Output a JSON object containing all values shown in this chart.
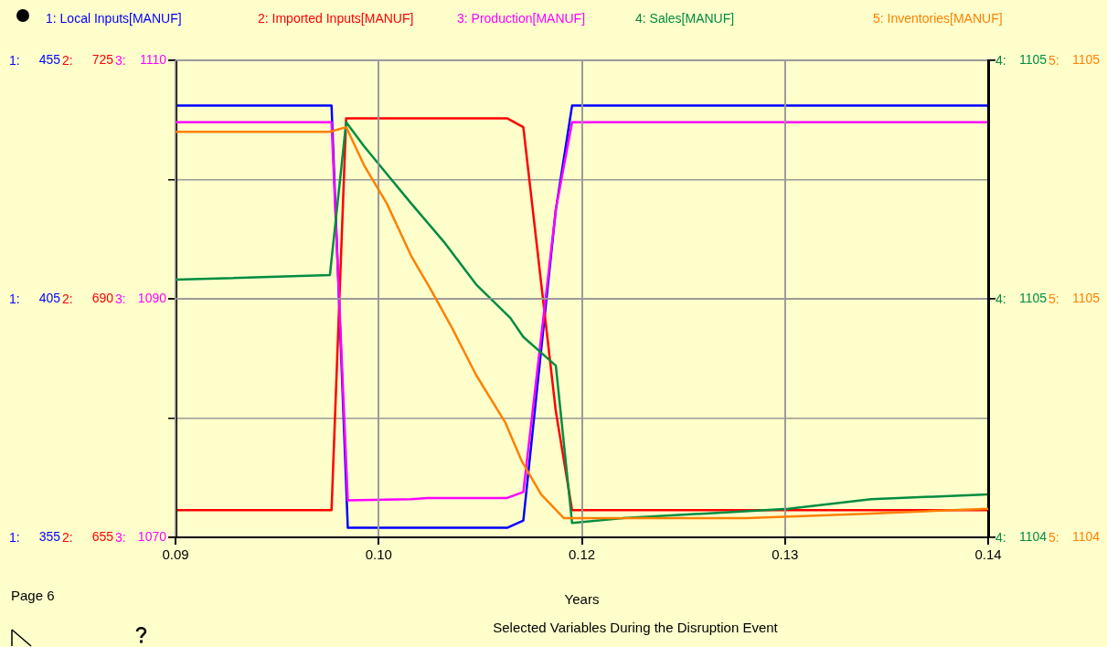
{
  "chart_data": [
    {
      "type": "line",
      "xlabel": "Years",
      "legend": "top",
      "grid": true,
      "line_style": "solid",
      "xlim": [
        0.09,
        0.14
      ],
      "xticks": [
        {
          "value": 0.09,
          "label": "0.09"
        },
        {
          "value": 0.1025,
          "label": "0.10"
        },
        {
          "value": 0.115,
          "label": "0.12"
        },
        {
          "value": 0.1275,
          "label": "0.13"
        },
        {
          "value": 0.14,
          "label": "0.14"
        }
      ],
      "ylim": [
        355,
        455
      ],
      "yticks": [
        355,
        {
          "value": 380,
          "label": null
        },
        405,
        {
          "value": 430,
          "label": null
        },
        455
      ],
      "annotations": [
        "Page 6",
        "Selected Variables During the Disruption Event",
        "1:",
        "1:",
        "1:"
      ],
      "series": [
        {
          "name": "1: Local Inputs[MANUF]",
          "color": "#0000ff",
          "x": [
            0.09,
            0.0996,
            0.1006,
            0.1104,
            0.1114,
            0.1134,
            0.1144,
            0.14
          ],
          "values": [
            445.5,
            445.5,
            357,
            357,
            358.5,
            423.7,
            445.5,
            445.5
          ]
        }
      ]
    },
    {
      "type": "line",
      "legend": "top",
      "grid": true,
      "line_style": "solid",
      "tick_labels": "y",
      "xlim": [
        0.09,
        0.14
      ],
      "xticks": [
        0.09,
        0.1025,
        0.115,
        0.1275,
        0.14
      ],
      "ylim": [
        655,
        725
      ],
      "yticks": [
        655,
        690,
        725
      ],
      "annotations": [
        "2:",
        "2:",
        "2:"
      ],
      "series": [
        {
          "name": "2: Imported Inputs[MANUF]",
          "color": "#ff0000",
          "x": [
            0.09,
            0.0996,
            0.1005,
            0.1104,
            0.1114,
            0.1134,
            0.1144,
            0.14
          ],
          "values": [
            659,
            659,
            716.5,
            716.5,
            715.2,
            673.5,
            659,
            659
          ]
        }
      ]
    },
    {
      "type": "line",
      "legend": "top",
      "grid": true,
      "line_style": "solid",
      "tick_labels": "y",
      "xlim": [
        0.09,
        0.14
      ],
      "xticks": [
        0.09,
        0.1025,
        0.115,
        0.1275,
        0.14
      ],
      "ylim": [
        1070,
        1110
      ],
      "yticks": [
        1070,
        1090,
        1110
      ],
      "annotations": [
        "3:",
        "3:",
        "3:"
      ],
      "series": [
        {
          "name": "3: Production[MANUF]",
          "color": "#ff00ff",
          "x": [
            0.09,
            0.0996,
            0.1006,
            0.1045,
            0.1055,
            0.1104,
            0.1114,
            0.1134,
            0.1144,
            0.14
          ],
          "values": [
            1104.8,
            1104.8,
            1073.1,
            1073.2,
            1073.3,
            1073.3,
            1073.8,
            1097.5,
            1104.8,
            1104.8
          ]
        }
      ]
    },
    {
      "type": "line",
      "legend": "top",
      "grid": true,
      "line_style": "solid",
      "tick_labels": "y",
      "xlim": [
        0.09,
        0.14
      ],
      "xticks": [
        0.09,
        0.1025,
        0.115,
        0.1275,
        0.14
      ],
      "ylim": [
        1104.2,
        1105.2
      ],
      "yticks": [
        {
          "value": 1104.2,
          "label": "1104"
        },
        {
          "value": 1104.7,
          "label": "1105"
        },
        {
          "value": 1105.2,
          "label": "1105"
        }
      ],
      "annotations": [
        "4:",
        "4:",
        "4:"
      ],
      "series": [
        {
          "name": "4: Sales[MANUF]",
          "color": "#008c40",
          "x": [
            0.09,
            0.0995,
            0.1005,
            0.1016,
            0.1028,
            0.1045,
            0.1065,
            0.1085,
            0.1106,
            0.1114,
            0.1124,
            0.1134,
            0.1144,
            0.1175,
            0.1226,
            0.1277,
            0.1328,
            0.14
          ],
          "values": [
            1104.74,
            1104.75,
            1105.07,
            1105.02,
            1104.97,
            1104.9,
            1104.82,
            1104.73,
            1104.66,
            1104.62,
            1104.59,
            1104.56,
            1104.23,
            1104.24,
            1104.25,
            1104.26,
            1104.28,
            1104.29
          ]
        }
      ]
    },
    {
      "type": "line",
      "legend": "top",
      "grid": true,
      "line_style": "solid",
      "tick_labels": "y",
      "xlim": [
        0.09,
        0.14
      ],
      "xticks": [
        0.09,
        0.1025,
        0.115,
        0.1275,
        0.14
      ],
      "ylim": [
        1104.2,
        1105.2
      ],
      "yticks": [
        {
          "value": 1104.2,
          "label": "1104"
        },
        {
          "value": 1104.7,
          "label": "1105"
        },
        {
          "value": 1105.2,
          "label": "1105"
        }
      ],
      "annotations": [
        "5:",
        "5:",
        "5:"
      ],
      "series": [
        {
          "name": "5: Inventories[MANUF]",
          "color": "#ff8000",
          "x": [
            0.09,
            0.0995,
            0.1005,
            0.1016,
            0.103,
            0.1045,
            0.1057,
            0.107,
            0.1085,
            0.1103,
            0.1113,
            0.1125,
            0.1139,
            0.1175,
            0.1251,
            0.1328,
            0.14
          ],
          "values": [
            1105.05,
            1105.05,
            1105.06,
            1104.98,
            1104.9,
            1104.79,
            1104.72,
            1104.64,
            1104.54,
            1104.44,
            1104.36,
            1104.29,
            1104.24,
            1104.24,
            1104.24,
            1104.25,
            1104.26
          ]
        }
      ]
    }
  ]
}
